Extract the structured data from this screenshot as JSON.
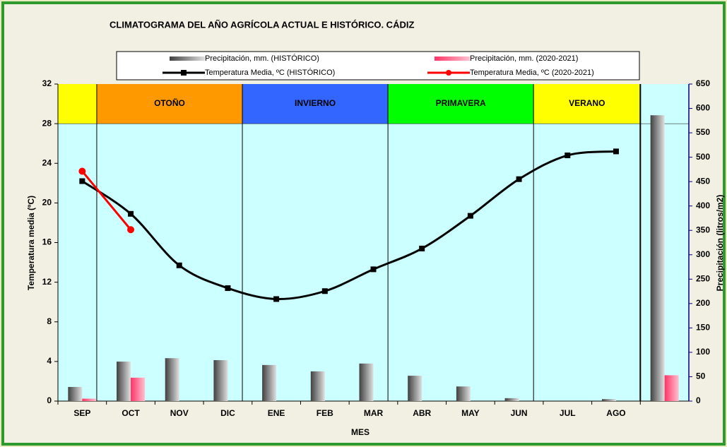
{
  "chart_data": {
    "type": "combo",
    "title": "CLIMATOGRAMA DEL AÑO AGRÍCOLA ACTUAL E HISTÓRICO. CÁDIZ",
    "xlabel": "MES",
    "ylabel": "Temperatura media (ºC)",
    "y2label": "Precipitación (litros/m2)",
    "categories": [
      "SEP",
      "OCT",
      "NOV",
      "DIC",
      "ENE",
      "FEB",
      "MAR",
      "ABR",
      "MAY",
      "JUN",
      "JUL",
      "AGO",
      null
    ],
    "series": [
      {
        "name": "Precipitación, mm. (HISTÓRICO)",
        "kind": "bar",
        "axis": "y2",
        "color": "#808080",
        "values": [
          29,
          81,
          88,
          84,
          74,
          61,
          77,
          52,
          30,
          6,
          0,
          4,
          586
        ]
      },
      {
        "name": "Precipitación, mm. (2020-2021)",
        "kind": "bar",
        "axis": "y2",
        "color": "#ff6699",
        "values": [
          5,
          48,
          null,
          null,
          null,
          null,
          null,
          null,
          null,
          null,
          null,
          null,
          53
        ]
      },
      {
        "name": "Temperatura Media, ºC (HISTÓRICO)",
        "kind": "line",
        "smooth": true,
        "marker": "square",
        "color": "#000000",
        "values": [
          22.2,
          18.9,
          13.7,
          11.4,
          10.3,
          11.1,
          13.3,
          15.4,
          18.7,
          22.4,
          24.8,
          25.2,
          null
        ]
      },
      {
        "name": "Temperatura Media, ºC (2020-2021)",
        "kind": "line",
        "smooth": false,
        "marker": "circle",
        "color": "#ff0000",
        "values": [
          23.2,
          17.3,
          null,
          null,
          null,
          null,
          null,
          null,
          null,
          null,
          null,
          null,
          null
        ]
      }
    ],
    "seasons": [
      {
        "from": "SEP",
        "to": "SEP",
        "color": "#ffff00"
      },
      {
        "label": "OTOÑO",
        "from": "OCT",
        "to": "DIC",
        "color": "#ff9900"
      },
      {
        "label": "INVIERNO",
        "from": "ENE",
        "to": "MAR",
        "color": "#3366ff"
      },
      {
        "label": "PRIMAVERA",
        "from": "ABR",
        "to": "JUN",
        "color": "#00ff00"
      },
      {
        "label": "VERANO",
        "from": "JUL",
        "to": "AGO",
        "color": "#ffff00"
      }
    ],
    "ylim": [
      0,
      32
    ],
    "yticks": [
      0,
      4,
      8,
      12,
      16,
      20,
      24,
      28,
      32
    ],
    "y2lim": [
      0,
      650
    ],
    "y2ticks": [
      0,
      50,
      100,
      150,
      200,
      250,
      300,
      350,
      400,
      450,
      500,
      550,
      600,
      650
    ]
  }
}
